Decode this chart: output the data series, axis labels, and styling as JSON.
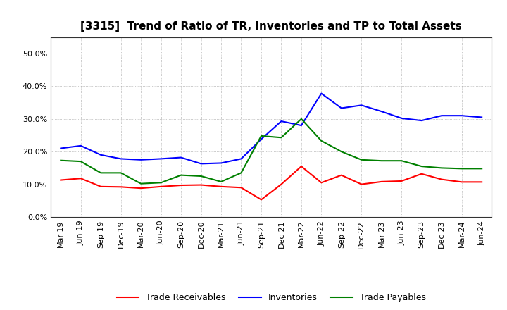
{
  "title": "[3315]  Trend of Ratio of TR, Inventories and TP to Total Assets",
  "x_labels": [
    "Mar-19",
    "Jun-19",
    "Sep-19",
    "Dec-19",
    "Mar-20",
    "Jun-20",
    "Sep-20",
    "Dec-20",
    "Mar-21",
    "Jun-21",
    "Sep-21",
    "Dec-21",
    "Mar-22",
    "Jun-22",
    "Sep-22",
    "Dec-22",
    "Mar-23",
    "Jun-23",
    "Sep-23",
    "Dec-23",
    "Mar-24",
    "Jun-24"
  ],
  "trade_receivables": [
    0.113,
    0.118,
    0.093,
    0.092,
    0.088,
    0.093,
    0.097,
    0.098,
    0.093,
    0.09,
    0.053,
    0.1,
    0.155,
    0.105,
    0.128,
    0.1,
    0.108,
    0.11,
    0.132,
    0.115,
    0.107,
    0.107
  ],
  "inventories": [
    0.21,
    0.218,
    0.19,
    0.178,
    0.175,
    0.178,
    0.182,
    0.163,
    0.165,
    0.178,
    0.238,
    0.293,
    0.28,
    0.378,
    0.333,
    0.342,
    0.323,
    0.302,
    0.295,
    0.31,
    0.31,
    0.305
  ],
  "trade_payables": [
    0.173,
    0.17,
    0.135,
    0.135,
    0.102,
    0.105,
    0.128,
    0.125,
    0.108,
    0.135,
    0.248,
    0.243,
    0.3,
    0.233,
    0.2,
    0.175,
    0.172,
    0.172,
    0.155,
    0.15,
    0.148,
    0.148
  ],
  "tr_color": "#FF0000",
  "inv_color": "#0000FF",
  "tp_color": "#008000",
  "ylim": [
    0.0,
    0.55
  ],
  "yticks": [
    0.0,
    0.1,
    0.2,
    0.3,
    0.4,
    0.5
  ],
  "background_color": "#FFFFFF",
  "grid_color": "#999999",
  "title_fontsize": 11,
  "tick_fontsize": 8,
  "legend_fontsize": 9
}
